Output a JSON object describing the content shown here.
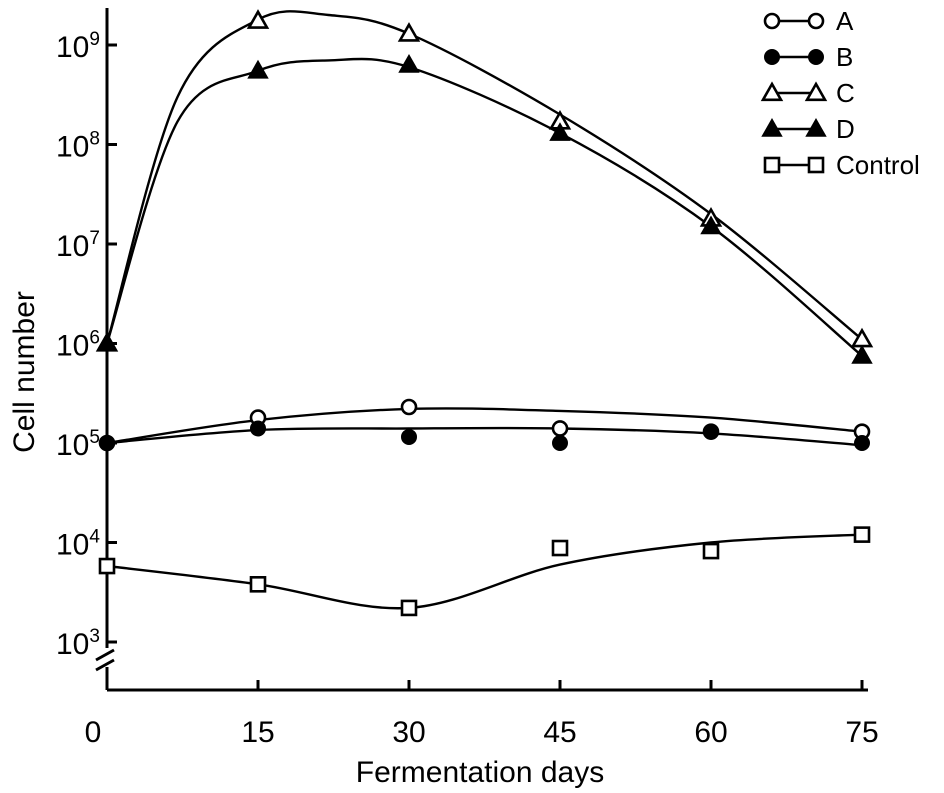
{
  "chart_data": {
    "type": "line",
    "title": "",
    "xlabel": "Fermentation days",
    "ylabel": "Cell number",
    "x_ticks": [
      "0",
      "15",
      "30",
      "45",
      "60",
      "75"
    ],
    "y_ticks": [
      {
        "base": "10",
        "exp": "3",
        "value": 1000
      },
      {
        "base": "10",
        "exp": "4",
        "value": 10000
      },
      {
        "base": "10",
        "exp": "5",
        "value": 100000
      },
      {
        "base": "10",
        "exp": "6",
        "value": 1000000
      },
      {
        "base": "10",
        "exp": "7",
        "value": 10000000
      },
      {
        "base": "10",
        "exp": "8",
        "value": 100000000
      },
      {
        "base": "10",
        "exp": "9",
        "value": 1000000000
      }
    ],
    "xlim": [
      0,
      75
    ],
    "ylim": [
      1000,
      1000000000
    ],
    "y_scale": "log",
    "y_axis_break": true,
    "grid": false,
    "legend_position": "top-right",
    "series": [
      {
        "name": "A",
        "marker": "circle",
        "filled": false,
        "x": [
          0,
          15,
          30,
          45,
          60,
          75
        ],
        "y": [
          100000,
          180000,
          230000,
          140000,
          130000,
          130000
        ],
        "curve_x": [
          0,
          15,
          30,
          45,
          60,
          75
        ],
        "curve_y": [
          100000,
          170000,
          220000,
          210000,
          180000,
          130000
        ]
      },
      {
        "name": "B",
        "marker": "circle",
        "filled": true,
        "x": [
          0,
          15,
          30,
          45,
          60,
          75
        ],
        "y": [
          100000,
          140000,
          115000,
          100000,
          130000,
          100000
        ],
        "curve_x": [
          0,
          15,
          30,
          45,
          60,
          75
        ],
        "curve_y": [
          100000,
          135000,
          140000,
          140000,
          125000,
          95000
        ]
      },
      {
        "name": "C",
        "marker": "triangle",
        "filled": false,
        "x": [
          0,
          15,
          30,
          45,
          60,
          75
        ],
        "y": [
          1000000,
          1750000000,
          1300000000,
          170000000,
          18000000,
          1100000
        ],
        "curve_x": [
          0,
          7,
          15,
          22,
          30,
          45,
          60,
          75
        ],
        "curve_y": [
          1000000,
          300000000,
          1800000000,
          2000000000,
          1300000000,
          200000000,
          20000000,
          1100000
        ]
      },
      {
        "name": "D",
        "marker": "triangle",
        "filled": true,
        "x": [
          0,
          15,
          30,
          45,
          60,
          75
        ],
        "y": [
          1000000,
          550000000,
          630000000,
          130000000,
          15000000,
          750000
        ],
        "curve_x": [
          0,
          7,
          15,
          22,
          30,
          45,
          60,
          75
        ],
        "curve_y": [
          1000000,
          170000000,
          550000000,
          700000000,
          600000000,
          130000000,
          15000000,
          750000
        ]
      },
      {
        "name": "Control",
        "marker": "square",
        "filled": false,
        "x": [
          0,
          15,
          30,
          45,
          60,
          75
        ],
        "y": [
          5800,
          3800,
          2200,
          8800,
          8200,
          12000
        ],
        "curve_x": [
          0,
          15,
          30,
          45,
          60,
          75
        ],
        "curve_y": [
          5800,
          3800,
          2200,
          6000,
          10000,
          12000
        ]
      }
    ]
  }
}
